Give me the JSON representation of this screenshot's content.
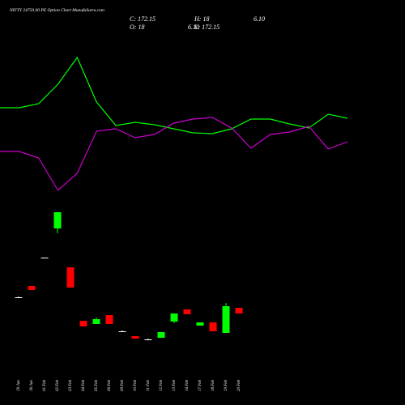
{
  "chart_data": [
    {
      "type": "line",
      "title": "NIFTY 24750.00 PE Option Chart MunafaSutra.com",
      "header": [
        "C: 172.15",
        "H: 18",
        "6.10",
        "O: 18",
        "6.10",
        "L: 172.15"
      ],
      "categories": [
        null,
        null,
        null,
        null,
        null,
        null,
        null,
        null,
        null,
        null,
        null,
        null,
        null,
        null,
        null,
        null,
        null,
        null,
        null
      ],
      "ylim": [
        0,
        250
      ],
      "series": [
        {
          "color": "#00ff00",
          "values": [
            117,
            117,
            122,
            146,
            179,
            124,
            95,
            99,
            96,
            91,
            86,
            85,
            91,
            103,
            103,
            97,
            92,
            109,
            104
          ]
        },
        {
          "color": "#cc00cc",
          "values": [
            63,
            63,
            55,
            15,
            36,
            88,
            91,
            80,
            84,
            98,
            103,
            105,
            92,
            67,
            84,
            87,
            94,
            66,
            75
          ]
        }
      ]
    },
    {
      "type": "candlestick",
      "categories": [
        "29 Jan",
        "30 Jan",
        "01 Feb",
        "02 Feb",
        "03 Feb",
        "04 Feb",
        "05 Feb",
        "06 Feb",
        "09 Feb",
        "10 Feb",
        "11 Feb",
        "12 Feb",
        "13 Feb",
        "14 Feb",
        "17 Feb",
        "18 Feb",
        "19 Feb",
        "20 Feb"
      ],
      "open": [
        73,
        87,
        122,
        158,
        110,
        44,
        40,
        51,
        31,
        25,
        21,
        23,
        43,
        58,
        38,
        42,
        29,
        60
      ],
      "high": [
        74,
        87,
        122,
        178,
        110,
        44,
        48,
        51,
        32,
        25,
        22,
        30,
        53,
        58,
        42,
        42,
        66,
        60
      ],
      "low": [
        72,
        82,
        122,
        152,
        85,
        37,
        40,
        40,
        30,
        22,
        20,
        23,
        41,
        52,
        38,
        31,
        29,
        53
      ],
      "close": [
        73,
        82,
        122,
        178,
        85,
        37,
        46,
        40,
        31,
        22,
        21,
        30,
        53,
        52,
        42,
        31,
        62,
        53
      ],
      "up_color": "#00ff00",
      "down_color": "#ff0000",
      "doji_color": "#ffffff",
      "ylim": [
        0,
        190
      ]
    }
  ]
}
